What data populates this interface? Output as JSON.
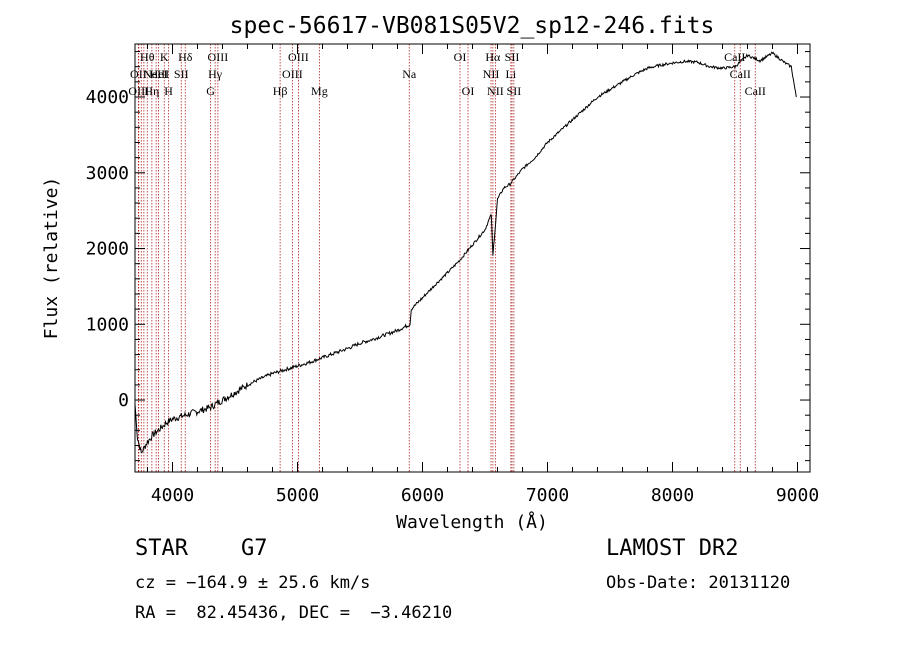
{
  "chart_data": {
    "type": "line",
    "title": "spec-56617-VB081S05V2_sp12-246.fits",
    "xlabel": "Wavelength (Å)",
    "ylabel": "Flux (relative)",
    "xlim": [
      3700,
      9100
    ],
    "ylim": [
      -950,
      4700
    ],
    "xticks": [
      4000,
      5000,
      6000,
      7000,
      8000,
      9000
    ],
    "yticks": [
      0,
      1000,
      2000,
      3000,
      4000
    ],
    "grid": false,
    "line_color": "#000000",
    "marker_color": "#b22222",
    "series": [
      {
        "x": [
          3700,
          3720,
          3750,
          3800,
          3850,
          3900,
          3950,
          4000,
          4100,
          4200,
          4300,
          4400,
          4500,
          4600,
          4700,
          4800,
          4900,
          5000,
          5100,
          5200,
          5300,
          5400,
          5500,
          5600,
          5700,
          5800,
          5900,
          5910,
          6000,
          6100,
          6200,
          6300,
          6400,
          6500,
          6550,
          6563,
          6600,
          6650,
          6700,
          6750,
          6800,
          6900,
          7000,
          7100,
          7200,
          7300,
          7400,
          7500,
          7600,
          7700,
          7800,
          7900,
          8000,
          8100,
          8200,
          8300,
          8400,
          8500,
          8600,
          8700,
          8800,
          8900,
          8950,
          8990
        ],
        "y": [
          -50,
          -500,
          -700,
          -550,
          -450,
          -380,
          -300,
          -250,
          -200,
          -150,
          -100,
          0,
          100,
          200,
          280,
          350,
          400,
          450,
          500,
          560,
          620,
          680,
          750,
          800,
          860,
          920,
          1000,
          1200,
          1350,
          1520,
          1680,
          1850,
          2050,
          2250,
          2450,
          1900,
          2650,
          2800,
          2850,
          2950,
          3050,
          3200,
          3400,
          3550,
          3700,
          3850,
          4000,
          4100,
          4200,
          4300,
          4380,
          4420,
          4450,
          4470,
          4460,
          4400,
          4380,
          4400,
          4550,
          4480,
          4580,
          4450,
          4400,
          4000
        ]
      }
    ],
    "lines": [
      {
        "wave": 3727,
        "label": "OII",
        "row": 1
      },
      {
        "wave": 3730,
        "label": "OIII",
        "row": 2
      },
      {
        "wave": 3750,
        "label": "",
        "row": 0
      },
      {
        "wave": 3771,
        "label": "",
        "row": 0
      },
      {
        "wave": 3798,
        "label": "Hθ",
        "row": 0
      },
      {
        "wave": 3835,
        "label": "Hη",
        "row": 2
      },
      {
        "wave": 3869,
        "label": "NeIII",
        "row": 1
      },
      {
        "wave": 3889,
        "label": "HeI",
        "row": 1
      },
      {
        "wave": 3934,
        "label": "K",
        "row": 0
      },
      {
        "wave": 3969,
        "label": "H",
        "row": 2
      },
      {
        "wave": 4070,
        "label": "SII",
        "row": 1
      },
      {
        "wave": 4102,
        "label": "Hδ",
        "row": 0
      },
      {
        "wave": 4305,
        "label": "G",
        "row": 2
      },
      {
        "wave": 4341,
        "label": "Hγ",
        "row": 1
      },
      {
        "wave": 4363,
        "label": "OIII",
        "row": 0
      },
      {
        "wave": 4861,
        "label": "Hβ",
        "row": 2
      },
      {
        "wave": 4959,
        "label": "OIII",
        "row": 1
      },
      {
        "wave": 5007,
        "label": "OIII",
        "row": 0
      },
      {
        "wave": 5175,
        "label": "Mg",
        "row": 2
      },
      {
        "wave": 5894,
        "label": "Na",
        "row": 1
      },
      {
        "wave": 6300,
        "label": "OI",
        "row": 0
      },
      {
        "wave": 6364,
        "label": "OI",
        "row": 2
      },
      {
        "wave": 6548,
        "label": "NII",
        "row": 1
      },
      {
        "wave": 6563,
        "label": "Hα",
        "row": 0
      },
      {
        "wave": 6583,
        "label": "NII",
        "row": 2
      },
      {
        "wave": 6707,
        "label": "Li",
        "row": 1
      },
      {
        "wave": 6716,
        "label": "SII",
        "row": 0
      },
      {
        "wave": 6731,
        "label": "SII",
        "row": 2
      },
      {
        "wave": 8498,
        "label": "CaII",
        "row": 0
      },
      {
        "wave": 8542,
        "label": "CaII",
        "row": 1
      },
      {
        "wave": 8662,
        "label": "CaII",
        "row": 2
      }
    ]
  },
  "info": {
    "object_class": "STAR    G7",
    "survey": "LAMOST DR2",
    "cz": "cz = −164.9 ± 25.6 km/s",
    "obs_date": "Obs-Date: 20131120",
    "radec": "RA =  82.45436, DEC =  −3.46210"
  }
}
